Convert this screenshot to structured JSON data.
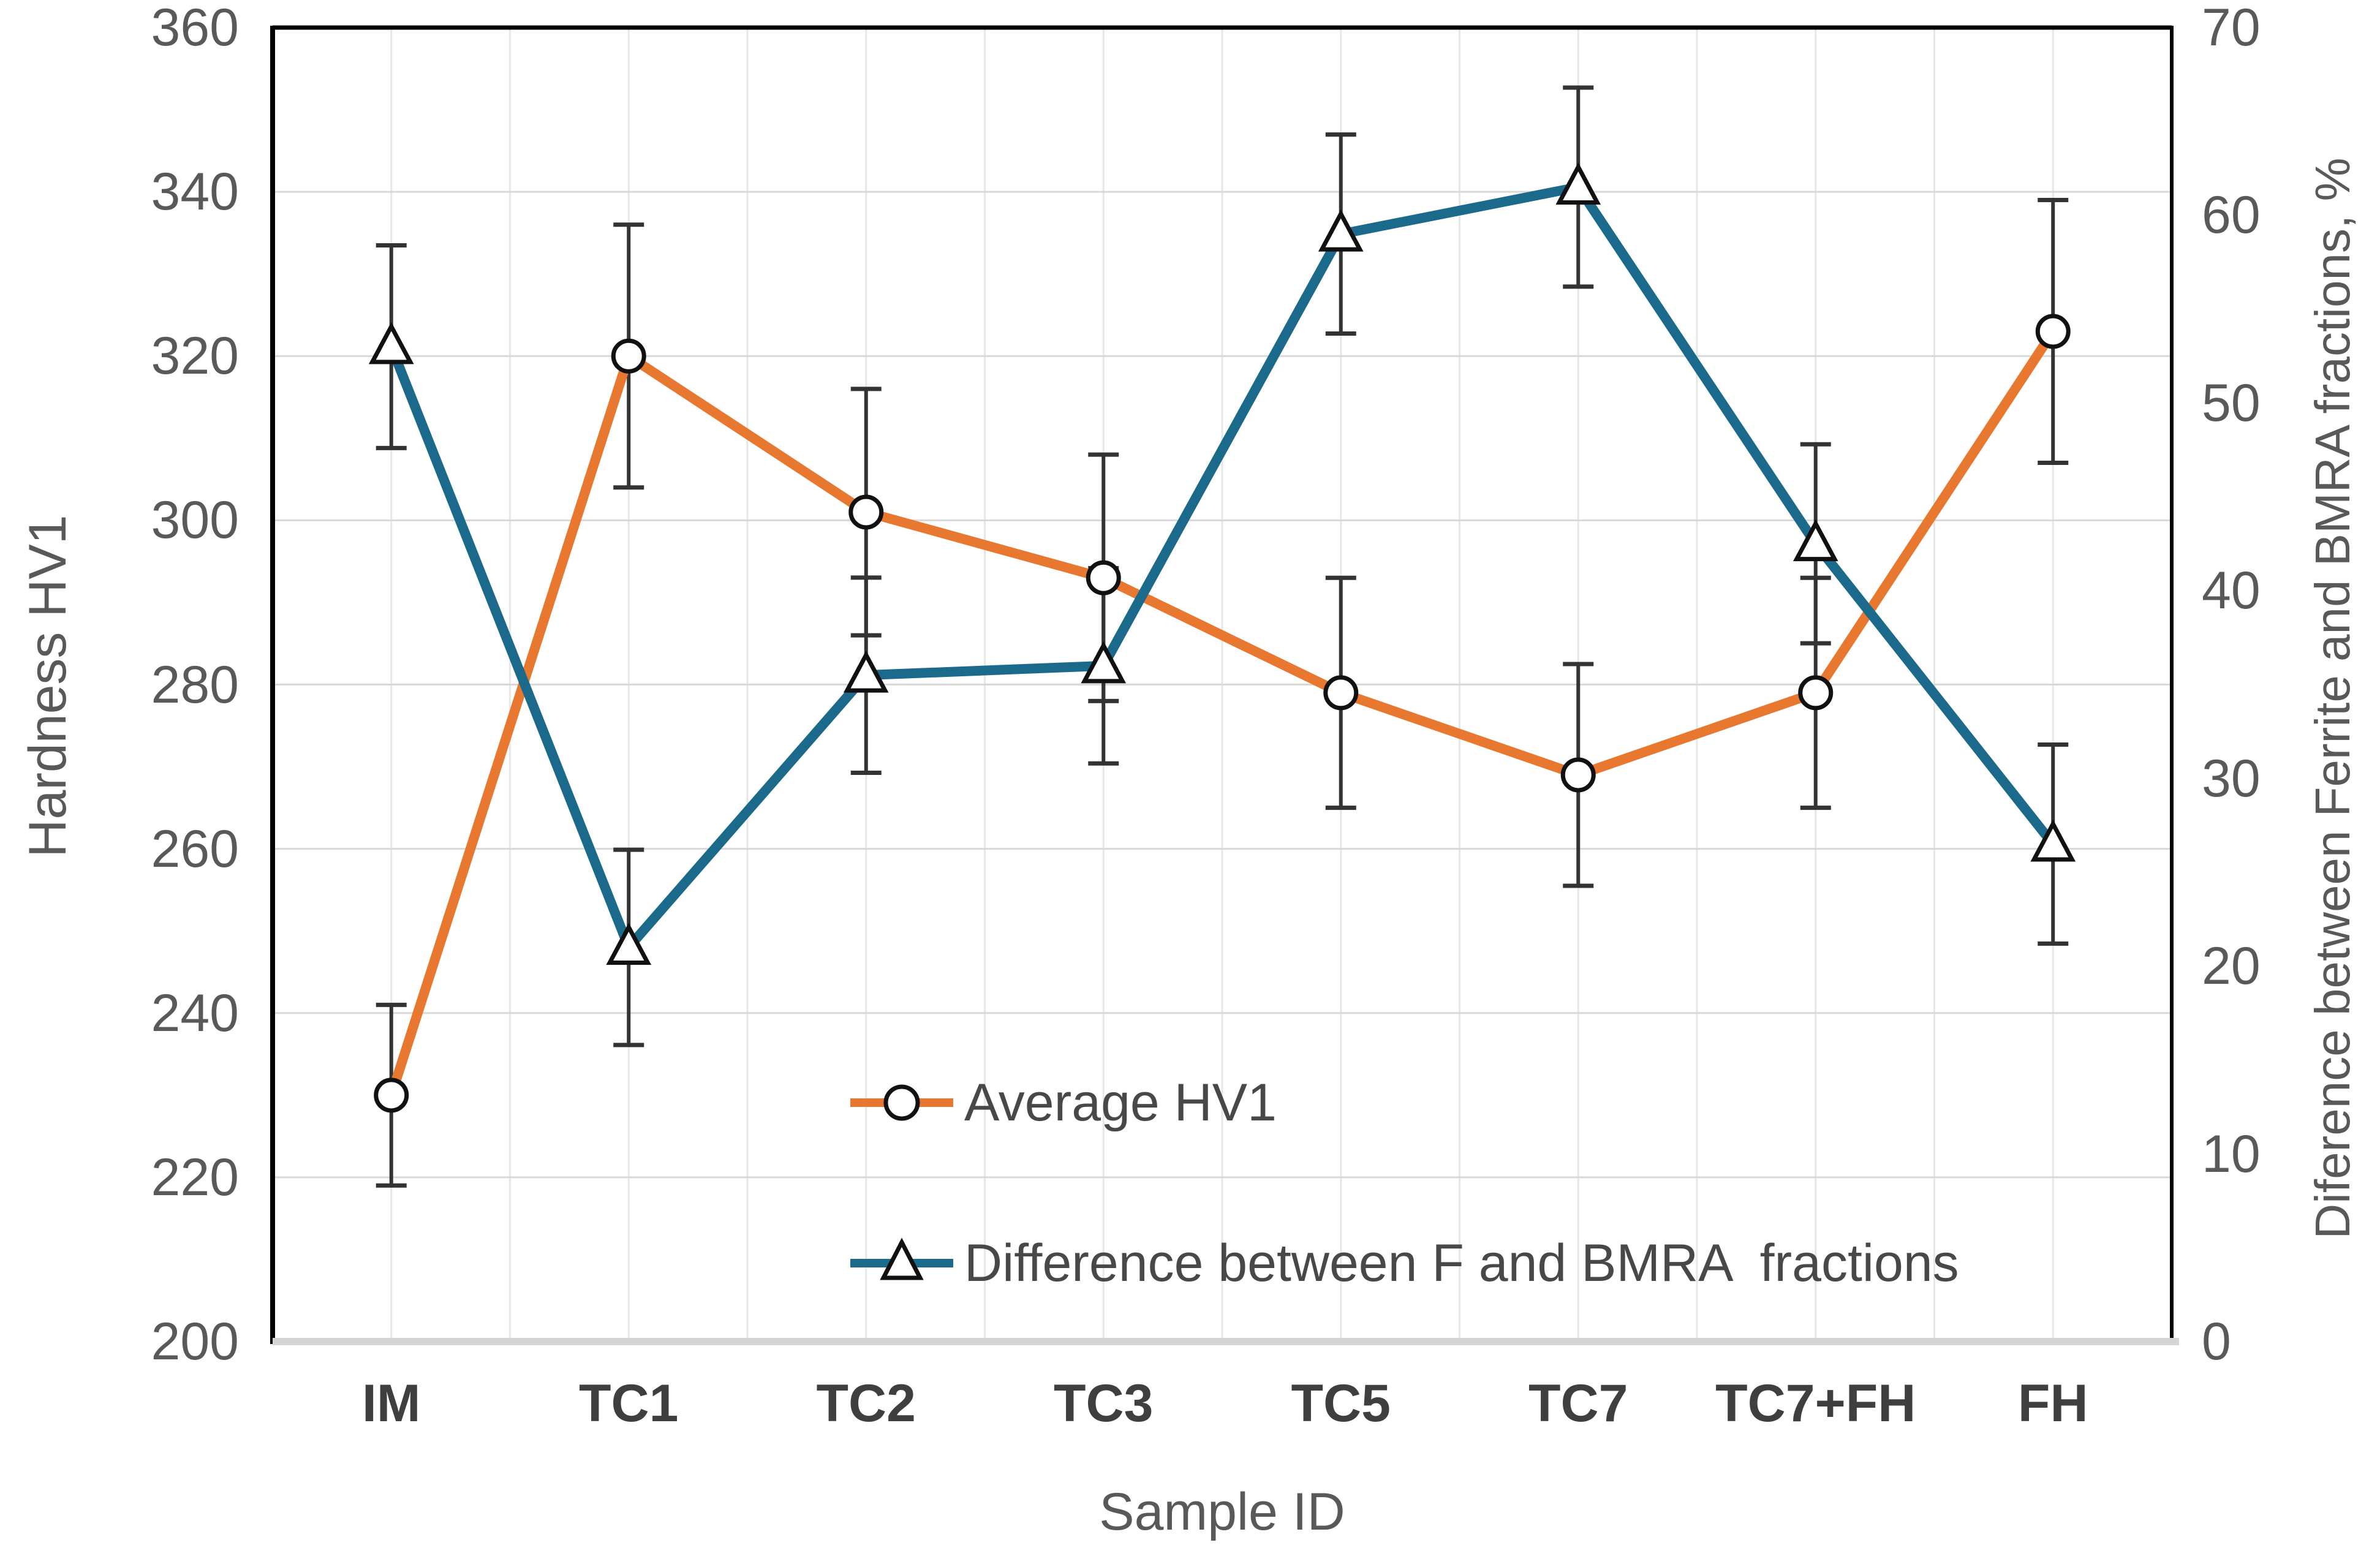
{
  "chart_data": {
    "type": "line",
    "title": "",
    "categories": [
      "IM",
      "TC1",
      "TC2",
      "TC3",
      "TC5",
      "TC7",
      "TC7+FH",
      "FH"
    ],
    "x_axis": {
      "label": "Sample ID"
    },
    "left_axis": {
      "label": "Hardness HV1",
      "min": 200,
      "max": 360,
      "step": 20,
      "ticks": [
        "360",
        "340",
        "320",
        "300",
        "280",
        "260",
        "240",
        "220",
        "200"
      ]
    },
    "right_axis": {
      "label": "Diference between Ferrite and BMRA fractions, %",
      "min": 0,
      "max": 70,
      "step": 10,
      "ticks": [
        "70",
        "60",
        "50",
        "40",
        "30",
        "20",
        "10",
        "0"
      ]
    },
    "series": [
      {
        "name": "Average HV1",
        "axis": "left",
        "marker": "circle",
        "color": "#E8772F",
        "values": [
          230,
          320,
          301,
          293,
          279,
          269,
          279,
          323
        ],
        "errors": [
          11,
          16,
          15,
          15,
          14,
          13.5,
          14,
          16
        ]
      },
      {
        "name": "Difference between F and BMRA  fractions",
        "axis": "right",
        "marker": "triangle",
        "color": "#1B6A8C",
        "values": [
          53,
          21,
          35.5,
          36,
          59,
          61.5,
          42.5,
          26.5
        ],
        "errors": [
          5.4,
          5.2,
          5.2,
          5.2,
          5.3,
          5.3,
          5.3,
          5.3
        ]
      }
    ],
    "legend_position": "inside-bottom-left",
    "grid": {
      "horizontal": true,
      "vertical": true
    },
    "style": {
      "gridline_horizontal": "#D9D9D9",
      "gridline_vertical": "#E7E7E7",
      "plot_border": "#000000",
      "x_axis_line": "#D5D5D5",
      "error_bar": "#333333",
      "marker_stroke": "#111111",
      "marker_fill": "#FFFFFF",
      "tick_text": "#595959",
      "category_text": "#3F3F3F",
      "axis_title_text": "#595959",
      "legend_text": "#484848",
      "background": "#FFFFFF"
    }
  }
}
